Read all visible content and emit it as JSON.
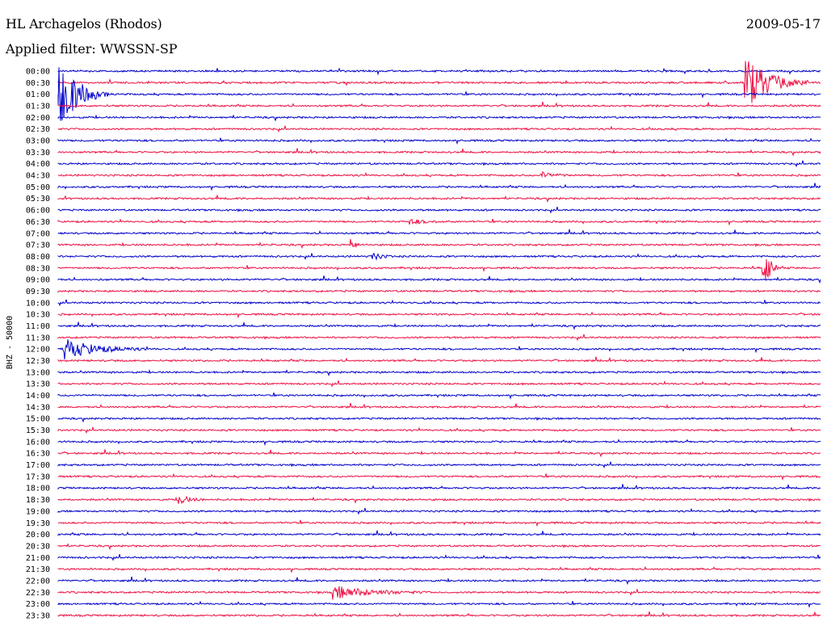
{
  "header": {
    "station": "HL Archagelos (Rhodos)",
    "date": "2009-05-17",
    "filter": "Applied filter: WWSSN-SP"
  },
  "side_label": "BHZ - 50000",
  "colors": {
    "even_row": "#0000cc",
    "odd_row": "#ee1144",
    "text": "#000000",
    "background": "#ffffff"
  },
  "chart_data": {
    "type": "line",
    "description_kind": "helicorder",
    "rows": [
      "00:00",
      "00:30",
      "01:00",
      "01:30",
      "02:00",
      "02:30",
      "03:00",
      "03:30",
      "04:00",
      "04:30",
      "05:00",
      "05:30",
      "06:00",
      "06:30",
      "07:00",
      "07:30",
      "08:00",
      "08:30",
      "09:00",
      "09:30",
      "10:00",
      "10:30",
      "11:00",
      "11:30",
      "12:00",
      "12:30",
      "13:00",
      "13:30",
      "14:00",
      "14:30",
      "15:00",
      "15:30",
      "16:00",
      "16:30",
      "17:00",
      "17:30",
      "18:00",
      "18:30",
      "19:00",
      "19:30",
      "20:00",
      "20:30",
      "21:00",
      "21:30",
      "22:00",
      "22:30",
      "23:00",
      "23:30"
    ],
    "row_minutes": 30,
    "events": [
      {
        "row": "00:30",
        "minute_start": 27.0,
        "minute_end": 29.5,
        "amplitude": 6
      },
      {
        "row": "01:00",
        "minute_start": 0.0,
        "minute_end": 2.0,
        "amplitude": 8
      },
      {
        "row": "12:00",
        "minute_start": 0.2,
        "minute_end": 3.5,
        "amplitude": 2.2
      },
      {
        "row": "08:30",
        "minute_start": 27.7,
        "minute_end": 28.4,
        "amplitude": 6
      },
      {
        "row": "18:30",
        "minute_start": 4.7,
        "minute_end": 5.8,
        "amplitude": 1.2
      },
      {
        "row": "22:30",
        "minute_start": 10.8,
        "minute_end": 14.5,
        "amplitude": 1.4
      },
      {
        "row": "07:30",
        "minute_start": 11.5,
        "minute_end": 12.0,
        "amplitude": 1.2
      },
      {
        "row": "08:00",
        "minute_start": 12.3,
        "minute_end": 13.2,
        "amplitude": 1.0
      },
      {
        "row": "04:30",
        "minute_start": 19.0,
        "minute_end": 20.2,
        "amplitude": 0.7
      },
      {
        "row": "06:30",
        "minute_start": 13.8,
        "minute_end": 15.3,
        "amplitude": 0.6
      }
    ]
  }
}
